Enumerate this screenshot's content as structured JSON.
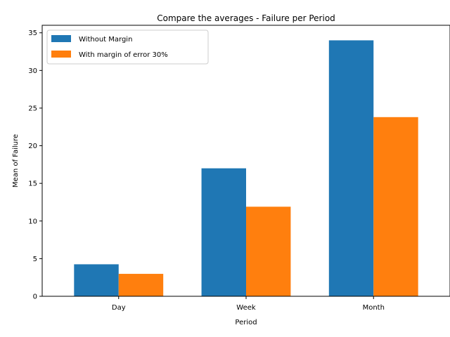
{
  "chart_data": {
    "type": "bar",
    "title": "Compare the averages - Failure per Period",
    "xlabel": "Period",
    "ylabel": "Mean of Failure",
    "categories": [
      "Day",
      "Week",
      "Month"
    ],
    "series": [
      {
        "name": "Without Margin",
        "values": [
          4.25,
          17.0,
          34.0
        ],
        "color": "#1f77b4"
      },
      {
        "name": "With margin of error 30%",
        "values": [
          2.98,
          11.9,
          23.8
        ],
        "color": "#ff7f0e"
      }
    ],
    "ylim": [
      0,
      36.0
    ],
    "yticks": [
      0,
      5,
      10,
      15,
      20,
      25,
      30,
      35
    ],
    "grid": false,
    "legend_position": "top-left"
  }
}
